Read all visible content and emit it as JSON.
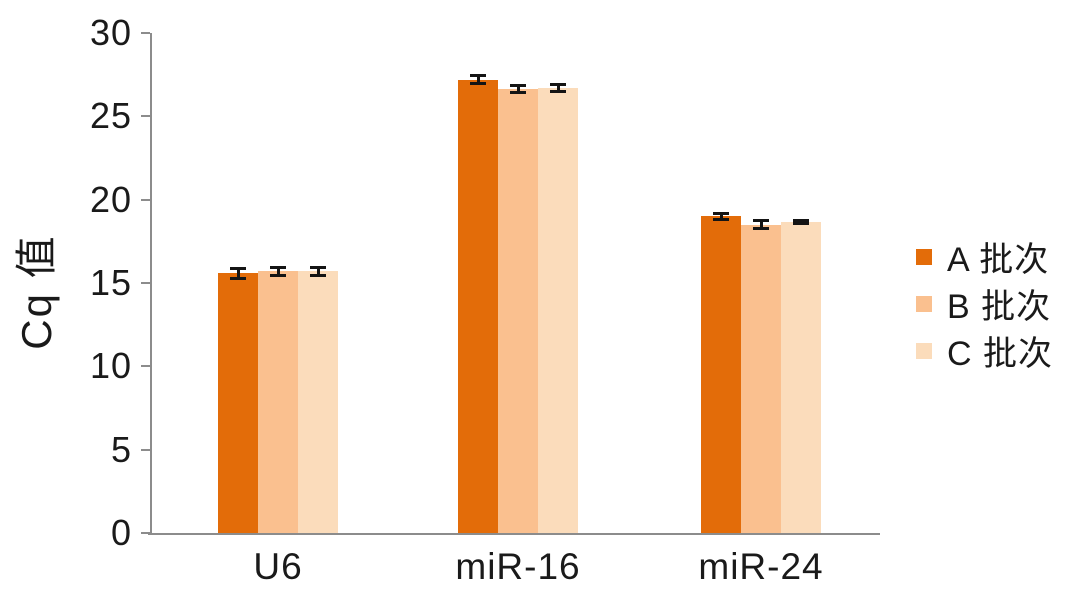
{
  "chart_data": {
    "type": "bar",
    "title": "",
    "xlabel": "",
    "ylabel": "Cq 值",
    "categories": [
      "U6",
      "miR-16",
      "miR-24"
    ],
    "series": [
      {
        "name": "A 批次",
        "color": "#E36C09",
        "values": [
          15.6,
          27.2,
          19.0
        ],
        "errors": [
          0.3,
          0.25,
          0.2
        ]
      },
      {
        "name": "B 批次",
        "color": "#FAC08F",
        "values": [
          15.7,
          26.65,
          18.5
        ],
        "errors": [
          0.25,
          0.2,
          0.25
        ]
      },
      {
        "name": "C 批次",
        "color": "#FBDCBB",
        "values": [
          15.7,
          26.7,
          18.65
        ],
        "errors": [
          0.25,
          0.2,
          0.1
        ]
      }
    ],
    "ylim": [
      0,
      30
    ],
    "yticks": [
      0,
      5,
      10,
      15,
      20,
      25,
      30
    ],
    "grid": false,
    "legend_position": "right",
    "colors": {
      "axis": "#8C8C8C",
      "text": "#1A1A1A",
      "error_bar": "#141414",
      "background": "#FFFFFF"
    }
  }
}
